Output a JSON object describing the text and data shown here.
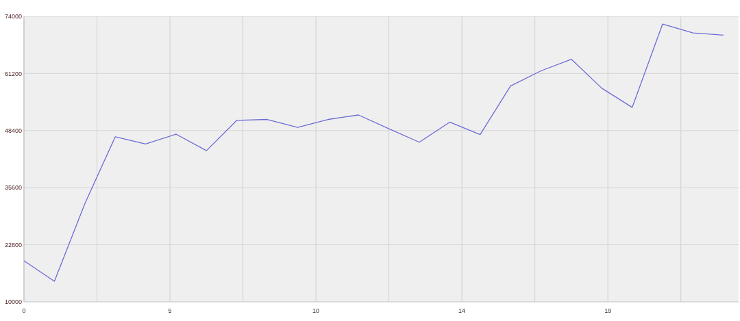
{
  "chart_data": {
    "type": "line",
    "x": [
      0,
      1,
      2,
      3,
      4,
      5,
      6,
      7,
      8,
      9,
      10,
      11,
      12,
      13,
      14,
      15,
      16,
      17,
      18,
      19,
      20,
      21,
      22,
      23
    ],
    "series": [
      {
        "color": "#6b6bd6",
        "values": [
          19200,
          14600,
          32000,
          47000,
          45400,
          47600,
          43900,
          50700,
          50900,
          49100,
          50900,
          51900,
          48800,
          45800,
          50300,
          47500,
          58400,
          61800,
          64400,
          57900,
          53600,
          72300,
          70300,
          69800
        ]
      }
    ],
    "xlim": [
      0,
      23.5
    ],
    "xticks": [
      0,
      {
        "value": 2.4,
        "label": null
      },
      {
        "value": 4.8,
        "label": "5"
      },
      {
        "value": 7.2,
        "label": null
      },
      {
        "value": 9.6,
        "label": "10"
      },
      {
        "value": 12,
        "label": null
      },
      {
        "value": 14.4,
        "label": "14"
      },
      {
        "value": 16.8,
        "label": null
      },
      {
        "value": 19.2,
        "label": "19"
      },
      {
        "value": 21.6,
        "label": null
      }
    ],
    "ylim": [
      10000,
      74000
    ],
    "yticks": [
      10000,
      22800,
      35600,
      48400,
      61200,
      74000
    ],
    "grid": true,
    "marker": "none",
    "line_style": "solid"
  }
}
